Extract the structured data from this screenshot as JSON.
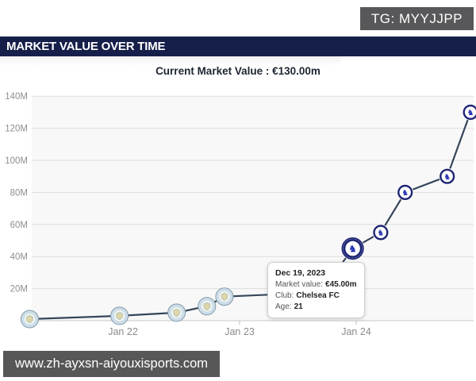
{
  "watermark": {
    "tg_label": "TG: MYYJJPP"
  },
  "header": {
    "title": "MARKET VALUE OVER TIME"
  },
  "footer": {
    "url": "www.zh-ayxsn-aiyouxisports.com"
  },
  "colors": {
    "header_bg": "#161f4a",
    "tg_bg": "#58585a",
    "url_bg": "#575757",
    "plot_bg": "#f8f8f8",
    "gridline": "#dedede",
    "baseline": "#c9c9c9",
    "tick": "#c0c0c0",
    "line": "#36455a",
    "man_city_ring": "#8599a4",
    "man_city_fill": "#cbdeec",
    "chelsea_navy": "#1d2473",
    "chelsea_lion": "#2433b0"
  },
  "chart_data": {
    "type": "line",
    "title": "Current Market Value : €130.00m",
    "xlabel": "",
    "ylabel": "",
    "ylim": [
      0,
      145
    ],
    "grid": true,
    "y_ticks": [
      {
        "v": 20,
        "label": "20M"
      },
      {
        "v": 40,
        "label": "40M"
      },
      {
        "v": 60,
        "label": "60M"
      },
      {
        "v": 80,
        "label": "80M"
      },
      {
        "v": 100,
        "label": "100M"
      },
      {
        "v": 120,
        "label": "120M"
      },
      {
        "v": 140,
        "label": "140M"
      }
    ],
    "x_ticks": [
      {
        "t": 2022,
        "label": "Jan 22"
      },
      {
        "t": 2023,
        "label": "Jan 23"
      },
      {
        "t": 2024,
        "label": "Jan 24"
      }
    ],
    "points": [
      {
        "t": 2021.2,
        "date": "Mar 2021",
        "value": 1,
        "club": "Manchester City"
      },
      {
        "t": 2021.97,
        "date": "Dec 2021",
        "value": 3,
        "club": "Manchester City"
      },
      {
        "t": 2022.46,
        "date": "Jun 2022",
        "value": 5,
        "club": "Manchester City"
      },
      {
        "t": 2022.72,
        "date": "Sep 2022",
        "value": 9,
        "club": "Manchester City"
      },
      {
        "t": 2022.87,
        "date": "Nov 2022",
        "value": 15,
        "club": "Manchester City"
      },
      {
        "t": 2023.5,
        "date": "Jun 2023",
        "value": 17,
        "club": "Manchester City",
        "occluded_by_tooltip": true
      },
      {
        "t": 2023.72,
        "date": "Sep 2023",
        "value": 20,
        "club": "Chelsea FC",
        "occluded_by_tooltip": true
      },
      {
        "t": 2023.97,
        "date": "Dec 19, 2023",
        "value": 45,
        "club": "Chelsea FC",
        "highlight": true
      },
      {
        "t": 2024.21,
        "date": "Mar 2024",
        "value": 55,
        "club": "Chelsea FC"
      },
      {
        "t": 2024.42,
        "date": "Jun 2024",
        "value": 80,
        "club": "Chelsea FC"
      },
      {
        "t": 2024.78,
        "date": "Oct 2024",
        "value": 90,
        "club": "Chelsea FC"
      },
      {
        "t": 2024.98,
        "date": "Dec 2024",
        "value": 130,
        "club": "Chelsea FC"
      }
    ],
    "tooltip": {
      "date": "Dec 19, 2023",
      "market_value_label": "Market value:",
      "market_value": "€45.00m",
      "club_label": "Club:",
      "club": "Chelsea FC",
      "age_label": "Age:",
      "age": "21"
    }
  }
}
